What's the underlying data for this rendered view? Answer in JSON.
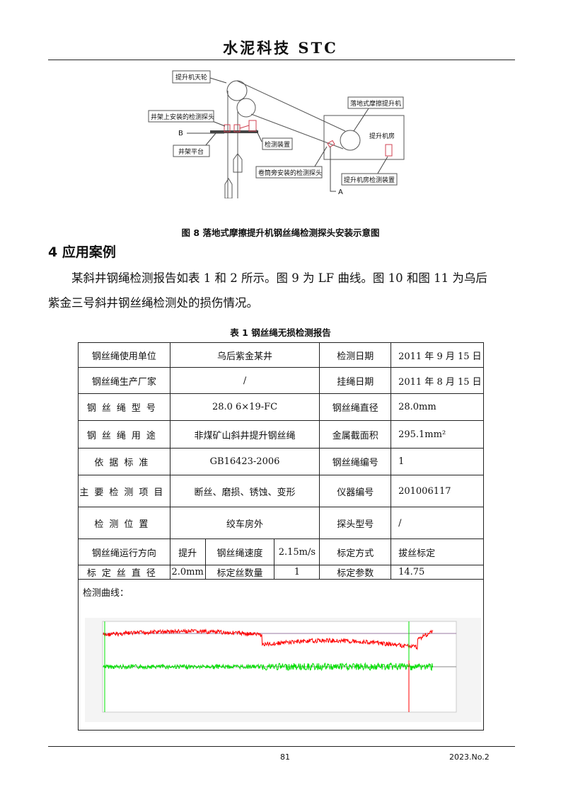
{
  "header": {
    "title": "水泥科技  STC"
  },
  "figure8": {
    "labels": {
      "sheave": "提升机天轮",
      "probe_on_frame": "井架上安装的检测探头",
      "b": "B",
      "platform": "井架平台",
      "device": "检测装置",
      "probe_by_drum": "卷筒旁安装的检测探头",
      "a": "A",
      "friction_hoist": "落地式摩擦提升机",
      "hoist_room": "提升机房",
      "room_device": "提升机房检测装置"
    },
    "caption": "图 8  落地式摩擦提升机钢丝绳检测探头安装示意图"
  },
  "section": {
    "heading": "4   应用案例",
    "paragraph": [
      "某斜井钢绳检测报告如表 1 和 2 所示。图 9 为 LF 曲线。图 10 和图 11 为乌后",
      "紫金三号斜井钢丝绳检测处的损伤情况。"
    ]
  },
  "table1": {
    "caption": "表 1  钢丝绳无损检测报告",
    "rows": [
      [
        "钢丝绳使用单位",
        "乌后紫金某井",
        "检测日期",
        "2011 年 9 月 15 日"
      ],
      [
        "钢丝绳生产厂家",
        "/",
        "挂绳日期",
        "2011 年 8 月 15 日"
      ],
      [
        "钢丝绳型号",
        "28.0 6×19-FC",
        "钢丝绳直径",
        "28.0mm"
      ],
      [
        "钢丝绳用途",
        "非煤矿山斜井提升钢丝绳",
        "金属截面积",
        "295.1mm²"
      ],
      [
        "依据标准",
        "GB16423-2006",
        "钢丝绳编号",
        "1"
      ],
      [
        "主要检测项目",
        "断丝、磨损、锈蚀、变形",
        "仪器编号",
        "201006117"
      ],
      [
        "检测位置",
        "绞车房外",
        "探头型号",
        "/"
      ]
    ],
    "row8": [
      "钢丝绳运行方向",
      "提升",
      "钢丝绳速度",
      "2.15m/s",
      "标定方式",
      "拔丝标定"
    ],
    "row9": [
      "标定丝直径",
      "2.0mm",
      "标定丝数量",
      "1",
      "标定参数",
      "14.75"
    ],
    "curve_label": "检测曲线："
  },
  "chart_data": {
    "type": "line",
    "grid": false,
    "series_colors": {
      "lma": "#ff0000",
      "lf": "#00e000",
      "markers": [
        "#00e000",
        "#ff0000"
      ],
      "reference": "#9a7aa0"
    }
  },
  "footer": {
    "page": "81",
    "issue": "2023.No.2"
  }
}
